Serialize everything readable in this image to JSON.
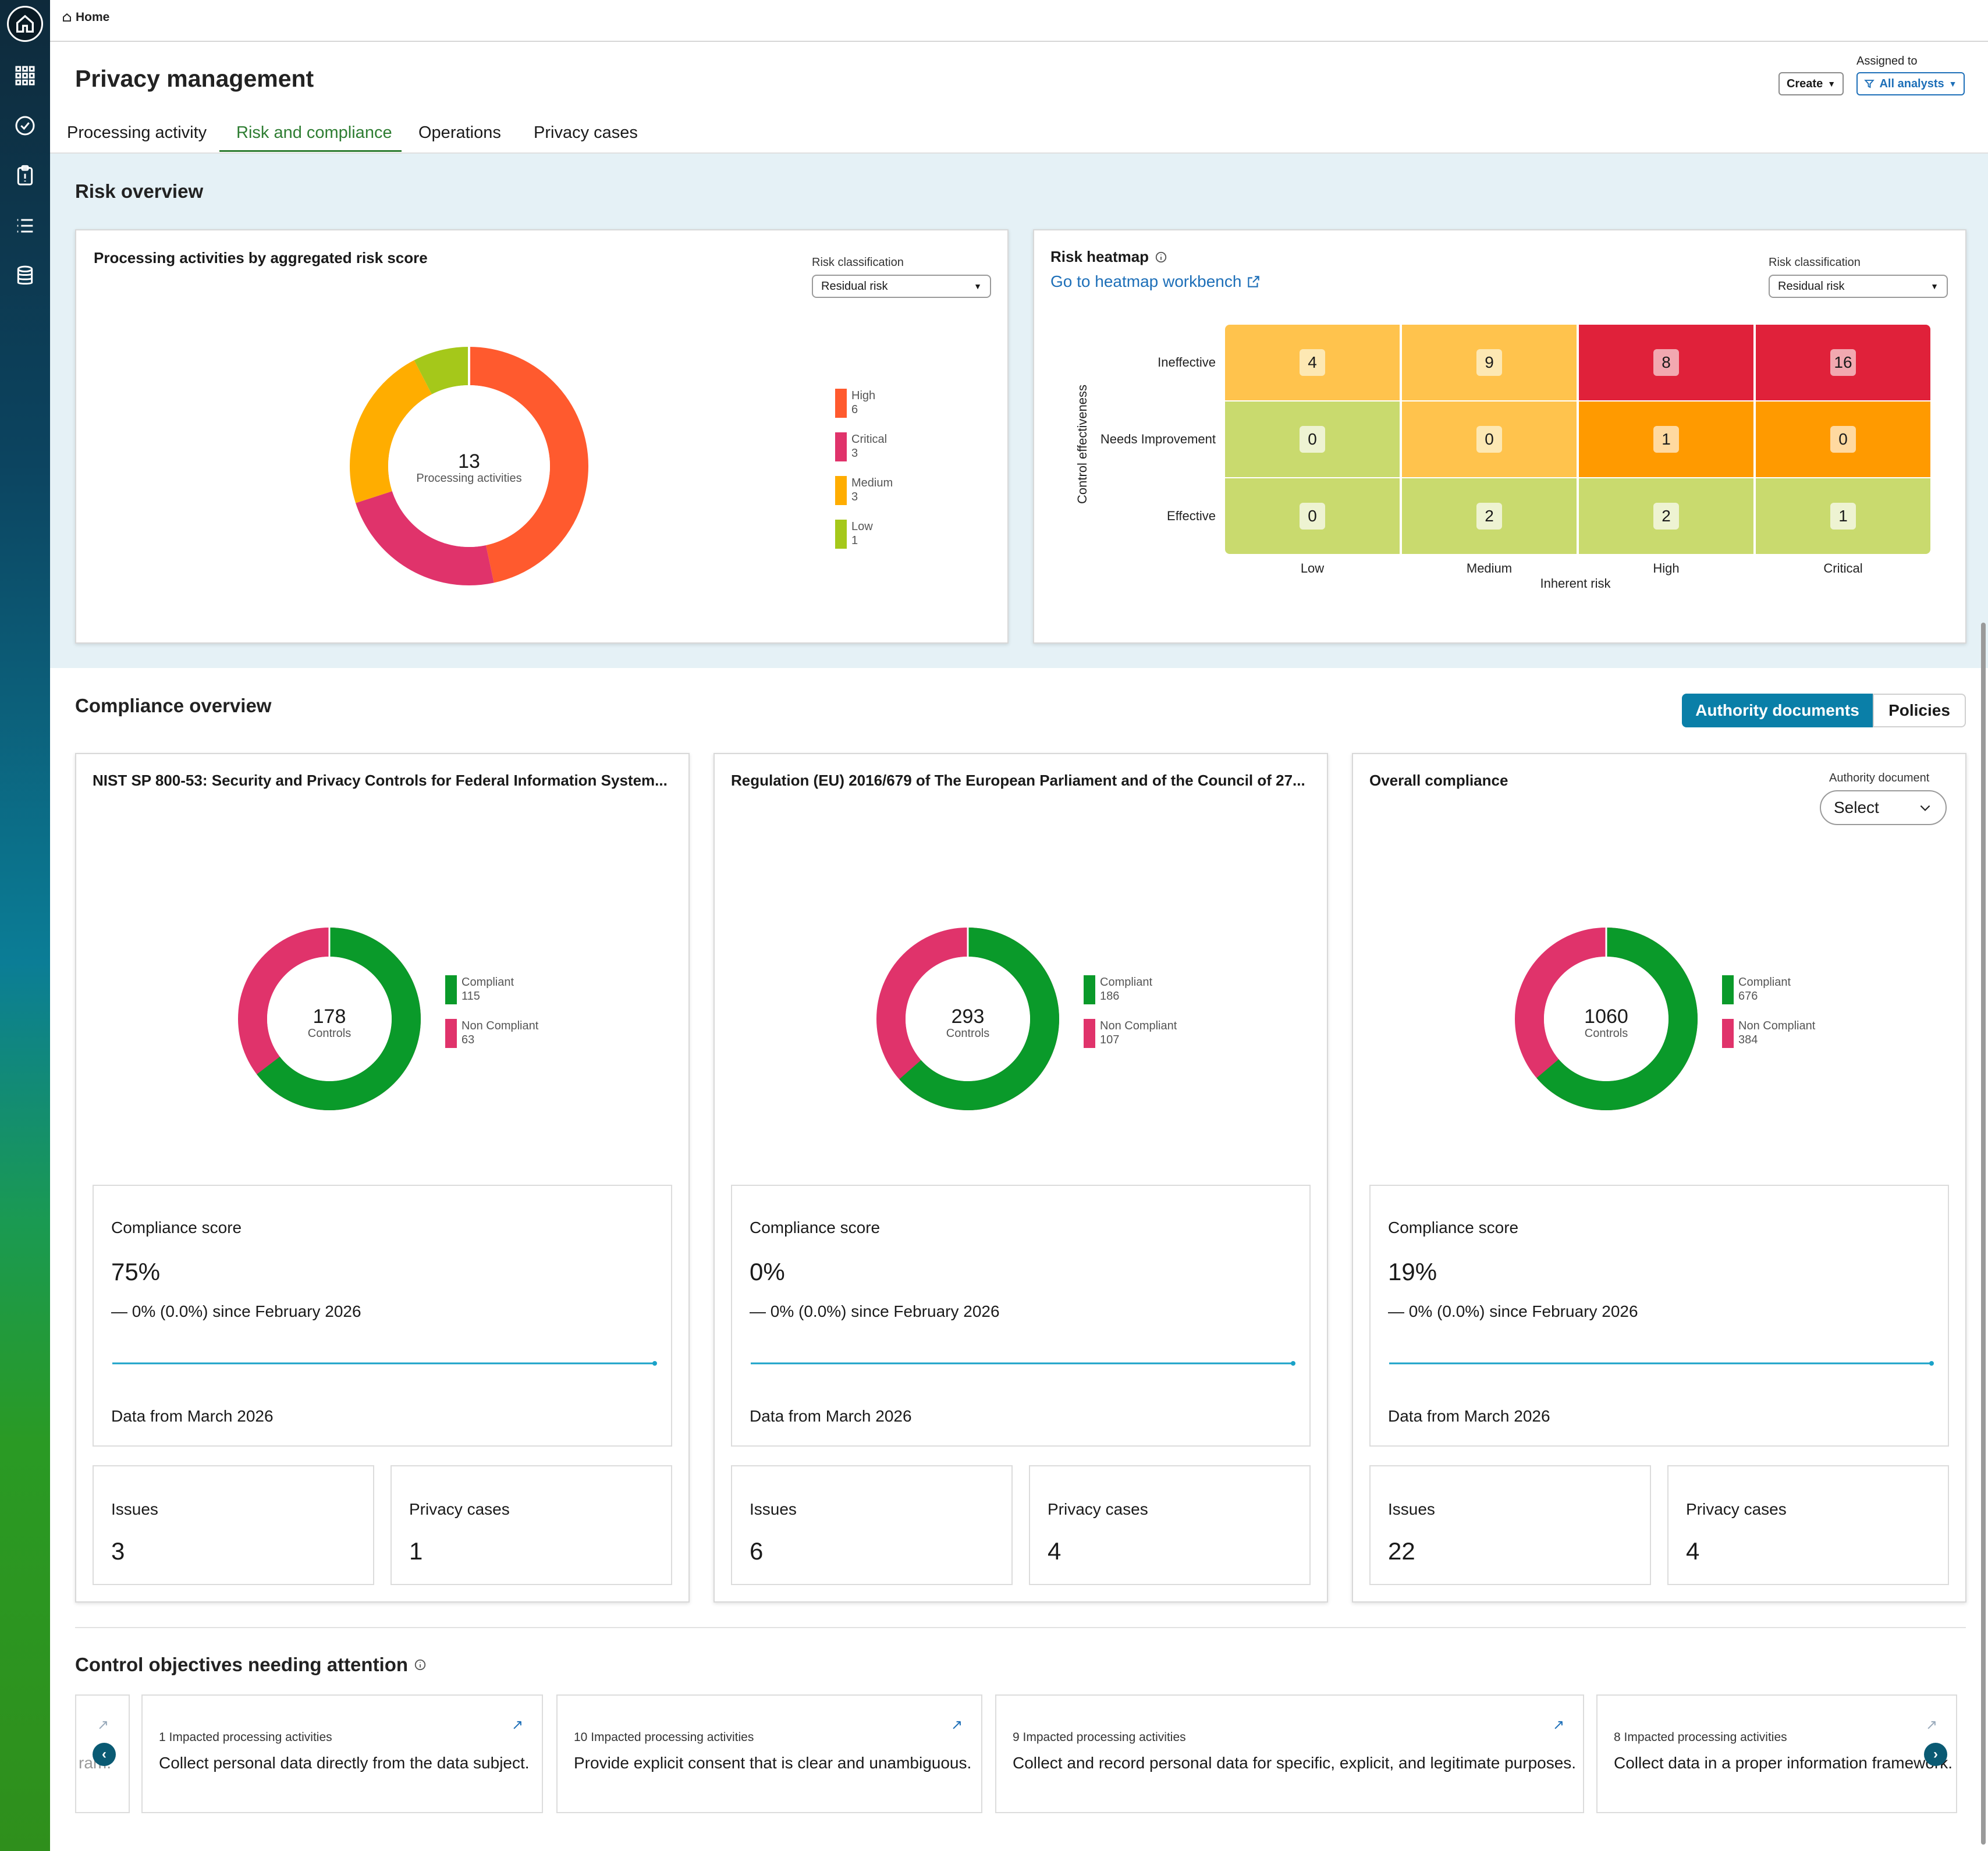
{
  "breadcrumb": {
    "label": "Home"
  },
  "header": {
    "title": "Privacy management",
    "assigned_label": "Assigned to",
    "create_label": "Create",
    "analyst_label": "All analysts"
  },
  "tabs": [
    "Processing activity",
    "Risk and compliance",
    "Operations",
    "Privacy cases"
  ],
  "risk_overview": {
    "title": "Risk overview",
    "donut_card": {
      "title": "Processing activities by aggregated risk score",
      "classification_label": "Risk classification",
      "classification_value": "Residual risk",
      "center_value": "13",
      "center_label": "Processing activities",
      "legend": [
        {
          "name": "High",
          "value": "6",
          "color": "#ff5a2e"
        },
        {
          "name": "Critical",
          "value": "3",
          "color": "#e0336b"
        },
        {
          "name": "Medium",
          "value": "3",
          "color": "#ffad00"
        },
        {
          "name": "Low",
          "value": "1",
          "color": "#a5c81a"
        }
      ]
    },
    "heatmap": {
      "title": "Risk heatmap",
      "link": "Go to heatmap workbench",
      "classification_label": "Risk classification",
      "classification_value": "Residual risk",
      "y_axis_label": "Control effectiveness",
      "x_axis_label": "Inherent risk",
      "rows": [
        "Ineffective",
        "Needs Improvement",
        "Effective"
      ],
      "cols": [
        "Low",
        "Medium",
        "High",
        "Critical"
      ],
      "values": [
        [
          "4",
          "9",
          "8",
          "16"
        ],
        [
          "0",
          "0",
          "1",
          "0"
        ],
        [
          "0",
          "2",
          "2",
          "1"
        ]
      ],
      "cell_colors": [
        [
          "#ffc34d",
          "#ffc34d",
          "#e0213a",
          "#e0213a"
        ],
        [
          "#c9da6e",
          "#ffc34d",
          "#ff9a00",
          "#ff9a00"
        ],
        [
          "#c9da6e",
          "#c9da6e",
          "#c9da6e",
          "#c9da6e"
        ]
      ],
      "badge_colors": [
        [
          "#fde8b3",
          "#fde8b3",
          "#f2a8b0",
          "#f2a8b0"
        ],
        [
          "#eef3d2",
          "#fde8b3",
          "#ffd9a0",
          "#ffd9a0"
        ],
        [
          "#eef3d2",
          "#eef3d2",
          "#eef3d2",
          "#eef3d2"
        ]
      ]
    }
  },
  "compliance_overview": {
    "title": "Compliance overview",
    "toggle": {
      "active": "Authority documents",
      "inactive": "Policies"
    },
    "cards": [
      {
        "title": "NIST SP 800-53: Security and Privacy Controls for Federal Information System...",
        "total": "178",
        "total_label": "Controls",
        "compliant_label": "Compliant",
        "compliant": "115",
        "noncompliant_label": "Non Compliant",
        "noncompliant": "63",
        "score_label": "Compliance score",
        "score": "75%",
        "change": "— 0% (0.0%) since February 2026",
        "data_from": "Data from March 2026",
        "issues_label": "Issues",
        "issues": "3",
        "cases_label": "Privacy cases",
        "cases": "1"
      },
      {
        "title": "Regulation (EU) 2016/679 of The European Parliament and of the Council of 27...",
        "total": "293",
        "total_label": "Controls",
        "compliant_label": "Compliant",
        "compliant": "186",
        "noncompliant_label": "Non Compliant",
        "noncompliant": "107",
        "score_label": "Compliance score",
        "score": "0%",
        "change": "— 0% (0.0%) since February 2026",
        "data_from": "Data from March 2026",
        "issues_label": "Issues",
        "issues": "6",
        "cases_label": "Privacy cases",
        "cases": "4"
      },
      {
        "title": "Overall compliance",
        "authority_label": "Authority document",
        "select_value": "Select",
        "total": "1060",
        "total_label": "Controls",
        "compliant_label": "Compliant",
        "compliant": "676",
        "noncompliant_label": "Non Compliant",
        "noncompliant": "384",
        "score_label": "Compliance score",
        "score": "19%",
        "change": "— 0% (0.0%) since February 2026",
        "data_from": "Data from March 2026",
        "issues_label": "Issues",
        "issues": "22",
        "cases_label": "Privacy cases",
        "cases": "4"
      }
    ],
    "colors": {
      "compliant": "#0a9a2a",
      "noncompliant": "#e0336b"
    }
  },
  "attention": {
    "title": "Control objectives needing attention",
    "partial_left": "ram.",
    "items": [
      {
        "count": "1 Impacted processing activities",
        "text": "Collect personal data directly from the data subject."
      },
      {
        "count": "10 Impacted processing activities",
        "text": "Provide explicit consent that is clear and unambiguous."
      },
      {
        "count": "9 Impacted processing activities",
        "text": "Collect and record personal data for specific, explicit, and legitimate purposes."
      },
      {
        "count": "8 Impacted processing activities",
        "text": "Collect data in a proper information framework."
      }
    ]
  }
}
